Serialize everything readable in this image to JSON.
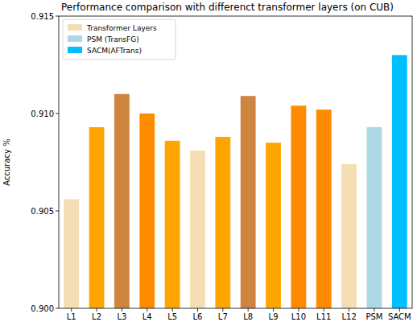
{
  "chart_data": {
    "type": "bar",
    "title": "Performance comparison with differenct transformer layers (on CUB)",
    "y_label": "Accuracy %",
    "categories": [
      "L1",
      "L2",
      "L3",
      "L4",
      "L5",
      "L6",
      "L7",
      "L8",
      "L9",
      "L10",
      "L11",
      "L12",
      "PSM",
      "SACM"
    ],
    "series": [
      {
        "name": "Transformer Layers",
        "color": "#f5deb3",
        "colors": [
          "#f5deb3",
          "#ffa500",
          "#cd853f",
          "#ff8c00",
          "#ffa500",
          "#f5deb3",
          "#ffa500",
          "#cd853f",
          "#ffa500",
          "#ff8c00",
          "#ff8c00",
          "#f5deb3",
          "#f5deb3",
          "#f5deb3"
        ],
        "values": [
          0.9056,
          0.9093,
          0.911,
          0.91,
          0.9086,
          0.9081,
          0.9088,
          0.9109,
          0.9085,
          0.9104,
          0.9102,
          0.9074,
          null,
          null
        ]
      },
      {
        "name": "PSM (TransFG)",
        "color": "#add8e6",
        "values": [
          null,
          null,
          null,
          null,
          null,
          null,
          null,
          null,
          null,
          null,
          null,
          null,
          0.9093,
          null
        ]
      },
      {
        "name": "SACM(AFTrans)",
        "color": "#00bfff",
        "values": [
          null,
          null,
          null,
          null,
          null,
          null,
          null,
          null,
          null,
          null,
          null,
          null,
          null,
          0.913
        ]
      }
    ],
    "ylim": [
      0.9,
      0.915
    ],
    "yticks": [
      {
        "value": 0.9,
        "label": "0.900"
      },
      {
        "value": 0.905,
        "label": "0.905"
      },
      {
        "value": 0.91,
        "label": "0.910"
      },
      {
        "value": 0.915,
        "label": "0.915"
      }
    ],
    "legend": "upper left"
  }
}
